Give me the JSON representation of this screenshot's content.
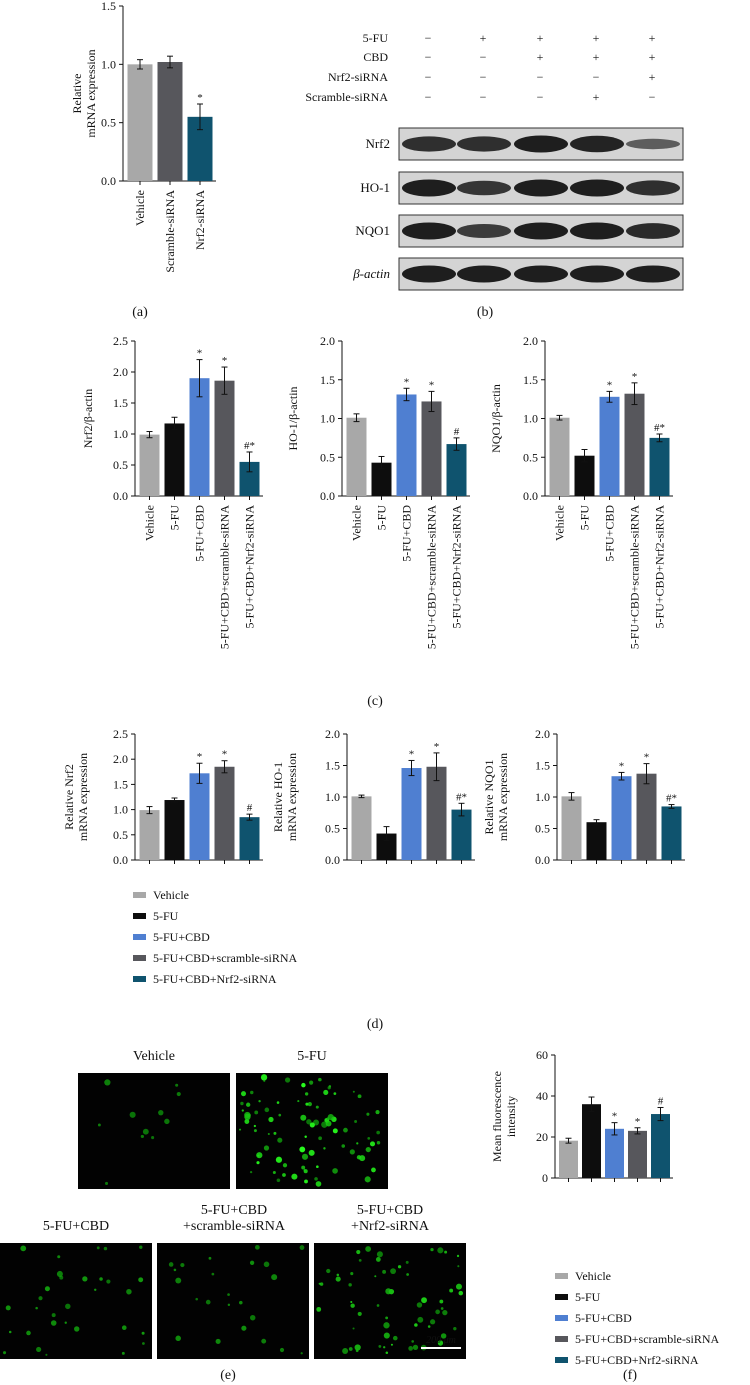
{
  "colors": {
    "vehicle": "#a8a8a8",
    "fu": "#0d0d0d",
    "cbd": "#4f7fd1",
    "scramble": "#57575c",
    "nrf2": "#0f536e",
    "blot_bg": "#d4d4d4",
    "band": "#141414"
  },
  "panel_labels": {
    "a": "(a)",
    "b": "(b)",
    "c": "(c)",
    "d": "(d)",
    "e": "(e)",
    "f": "(f)"
  },
  "legend": [
    "Vehicle",
    "5-FU",
    "5-FU+CBD",
    "5-FU+CBD+scramble-siRNA",
    "5-FU+CBD+Nrf2-siRNA"
  ],
  "blot": {
    "condition_rows": [
      {
        "label": "5-FU",
        "marks": [
          "−",
          "+",
          "+",
          "+",
          "+"
        ]
      },
      {
        "label": "CBD",
        "marks": [
          "−",
          "−",
          "+",
          "+",
          "+"
        ]
      },
      {
        "label": "Nrf2-siRNA",
        "marks": [
          "−",
          "−",
          "−",
          "−",
          "+"
        ]
      },
      {
        "label": "Scramble-siRNA",
        "marks": [
          "−",
          "−",
          "−",
          "+",
          "−"
        ]
      }
    ],
    "proteins": [
      "Nrf2",
      "HO-1",
      "NQO1",
      "β-actin"
    ],
    "band_intensity": [
      [
        0.85,
        0.85,
        1.0,
        0.95,
        0.45
      ],
      [
        1.0,
        0.8,
        1.0,
        1.0,
        0.85
      ],
      [
        1.0,
        0.75,
        1.0,
        1.0,
        0.9
      ],
      [
        1.0,
        1.0,
        1.0,
        1.0,
        1.0
      ]
    ]
  },
  "micrographs": {
    "labels": [
      [
        "Vehicle"
      ],
      [
        "5-FU"
      ],
      [
        "5-FU+CBD"
      ],
      [
        "5-FU+CBD",
        "+scramble-siRNA"
      ],
      [
        "5-FU+CBD",
        "+Nrf2-siRNA"
      ]
    ],
    "cell_density": [
      0.12,
      1.0,
      0.35,
      0.25,
      0.7
    ],
    "scale_bar": "200 μm"
  },
  "chart_data": [
    {
      "id": "a",
      "type": "bar",
      "categories": [
        "Vehicle",
        "Scramble-siRNA",
        "Nrf2-siRNA"
      ],
      "values": [
        1.0,
        1.02,
        0.55
      ],
      "errors": [
        0.04,
        0.05,
        0.11
      ],
      "marks": [
        "",
        "",
        "*"
      ],
      "ylabel": [
        "Relative",
        "mRNA expression"
      ],
      "ylim": [
        0,
        1.5
      ],
      "yticks": [
        "0.0",
        "0.5",
        "1.0",
        "1.5"
      ],
      "color_keys": [
        "vehicle",
        "scramble",
        "nrf2"
      ]
    },
    {
      "id": "c1",
      "type": "bar",
      "categories": [
        "Vehicle",
        "5-FU",
        "5-FU+CBD",
        "5-FU+CBD+scramble-siRNA",
        "5-FU+CBD+Nrf2-siRNA"
      ],
      "values": [
        0.99,
        1.17,
        1.9,
        1.86,
        0.55
      ],
      "errors": [
        0.05,
        0.1,
        0.3,
        0.22,
        0.16
      ],
      "marks": [
        "",
        "",
        "*",
        "*",
        "#*"
      ],
      "ylabel": [
        "Nrf2/β-actin"
      ],
      "ylim": [
        0,
        2.5
      ],
      "yticks": [
        "0.0",
        "0.5",
        "1.0",
        "1.5",
        "2.0",
        "2.5"
      ],
      "color_keys": [
        "vehicle",
        "fu",
        "cbd",
        "scramble",
        "nrf2"
      ]
    },
    {
      "id": "c2",
      "type": "bar",
      "categories": [
        "Vehicle",
        "5-FU",
        "5-FU+CBD",
        "5-FU+CBD+scramble-siRNA",
        "5-FU+CBD+Nrf2-siRNA"
      ],
      "values": [
        1.01,
        0.43,
        1.31,
        1.22,
        0.67
      ],
      "errors": [
        0.05,
        0.08,
        0.08,
        0.13,
        0.08
      ],
      "marks": [
        "",
        "",
        "*",
        "*",
        "#"
      ],
      "ylabel": [
        "HO-1/β-actin"
      ],
      "ylim": [
        0,
        2.0
      ],
      "yticks": [
        "0.0",
        "0.5",
        "1.0",
        "1.5",
        "2.0"
      ],
      "color_keys": [
        "vehicle",
        "fu",
        "cbd",
        "scramble",
        "nrf2"
      ]
    },
    {
      "id": "c3",
      "type": "bar",
      "categories": [
        "Vehicle",
        "5-FU",
        "5-FU+CBD",
        "5-FU+CBD+scramble-siRNA",
        "5-FU+CBD+Nrf2-siRNA"
      ],
      "values": [
        1.01,
        0.52,
        1.28,
        1.32,
        0.75
      ],
      "errors": [
        0.03,
        0.08,
        0.07,
        0.14,
        0.05
      ],
      "marks": [
        "",
        "",
        "*",
        "*",
        "#*"
      ],
      "ylabel": [
        "NQO1/β-actin"
      ],
      "ylim": [
        0,
        2.0
      ],
      "yticks": [
        "0.0",
        "0.5",
        "1.0",
        "1.5",
        "2.0"
      ],
      "color_keys": [
        "vehicle",
        "fu",
        "cbd",
        "scramble",
        "nrf2"
      ]
    },
    {
      "id": "d1",
      "type": "bar",
      "categories": [
        "Vehicle",
        "5-FU",
        "5-FU+CBD",
        "5-FU+CBD+scramble-siRNA",
        "5-FU+CBD+Nrf2-siRNA"
      ],
      "values": [
        0.99,
        1.19,
        1.72,
        1.85,
        0.85
      ],
      "errors": [
        0.07,
        0.04,
        0.2,
        0.12,
        0.06
      ],
      "marks": [
        "",
        "",
        "*",
        "*",
        "#"
      ],
      "ylabel": [
        "Relative Nrf2",
        "mRNA expression"
      ],
      "ylim": [
        0,
        2.5
      ],
      "yticks": [
        "0.0",
        "0.5",
        "1.0",
        "1.5",
        "2.0",
        "2.5"
      ],
      "color_keys": [
        "vehicle",
        "fu",
        "cbd",
        "scramble",
        "nrf2"
      ]
    },
    {
      "id": "d2",
      "type": "bar",
      "categories": [
        "Vehicle",
        "5-FU",
        "5-FU+CBD",
        "5-FU+CBD+scramble-siRNA",
        "5-FU+CBD+Nrf2-siRNA"
      ],
      "values": [
        1.01,
        0.42,
        1.46,
        1.48,
        0.8
      ],
      "errors": [
        0.02,
        0.11,
        0.12,
        0.22,
        0.1
      ],
      "marks": [
        "",
        "",
        "*",
        "*",
        "#*"
      ],
      "ylabel": [
        "Relative HO-1",
        "mRNA expression"
      ],
      "ylim": [
        0,
        2.0
      ],
      "yticks": [
        "0.0",
        "0.5",
        "1.0",
        "1.5",
        "2.0"
      ],
      "color_keys": [
        "vehicle",
        "fu",
        "cbd",
        "scramble",
        "nrf2"
      ]
    },
    {
      "id": "d3",
      "type": "bar",
      "categories": [
        "Vehicle",
        "5-FU",
        "5-FU+CBD",
        "5-FU+CBD+scramble-siRNA",
        "5-FU+CBD+Nrf2-siRNA"
      ],
      "values": [
        1.01,
        0.6,
        1.33,
        1.37,
        0.85
      ],
      "errors": [
        0.06,
        0.04,
        0.06,
        0.16,
        0.03
      ],
      "marks": [
        "",
        "",
        "*",
        "*",
        "#*"
      ],
      "ylabel": [
        "Relative NQO1",
        "mRNA expression"
      ],
      "ylim": [
        0,
        2.0
      ],
      "yticks": [
        "0.0",
        "0.5",
        "1.0",
        "1.5",
        "2.0"
      ],
      "color_keys": [
        "vehicle",
        "fu",
        "cbd",
        "scramble",
        "nrf2"
      ]
    },
    {
      "id": "f",
      "type": "bar",
      "categories": [
        "Vehicle",
        "5-FU",
        "5-FU+CBD",
        "5-FU+CBD+scramble-siRNA",
        "5-FU+CBD+Nrf2-siRNA"
      ],
      "values": [
        18.2,
        36.0,
        24.0,
        23.0,
        31.2
      ],
      "errors": [
        1.2,
        3.5,
        3.0,
        1.5,
        3.2
      ],
      "marks": [
        "",
        "",
        "*",
        "*",
        "#"
      ],
      "ylabel": [
        "Mean fluorescence",
        "intensity"
      ],
      "ylim": [
        0,
        60
      ],
      "yticks": [
        "0",
        "20",
        "40",
        "60"
      ],
      "color_keys": [
        "vehicle",
        "fu",
        "cbd",
        "scramble",
        "nrf2"
      ]
    }
  ]
}
